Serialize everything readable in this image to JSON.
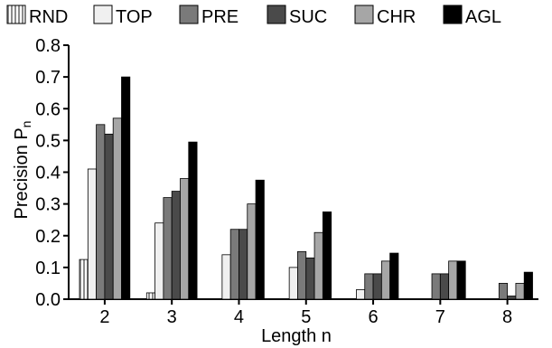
{
  "chart_data": {
    "type": "bar",
    "title": "",
    "xlabel": "Length n",
    "ylabel": "Precision P",
    "ylabel_sub": "n",
    "ylim": [
      0,
      0.8
    ],
    "yticks": [
      "0.0",
      "0.1",
      "0.2",
      "0.3",
      "0.4",
      "0.5",
      "0.6",
      "0.7",
      "0.8"
    ],
    "grid": false,
    "legend_position": "top",
    "categories": [
      "2",
      "3",
      "4",
      "5",
      "6",
      "7",
      "8"
    ],
    "series": [
      {
        "name": "RND",
        "color": "#c8c8c8",
        "pattern": "vertical-stripes",
        "values": [
          0.125,
          0.02,
          0.0,
          0.0,
          0.0,
          0.0,
          0.0
        ]
      },
      {
        "name": "TOP",
        "color": "#f0f0f0",
        "values": [
          0.41,
          0.24,
          0.14,
          0.1,
          0.03,
          0.0,
          0.0
        ]
      },
      {
        "name": "PRE",
        "color": "#7a7a7a",
        "values": [
          0.55,
          0.32,
          0.22,
          0.15,
          0.08,
          0.08,
          0.05
        ]
      },
      {
        "name": "SUC",
        "color": "#4a4a4a",
        "values": [
          0.52,
          0.34,
          0.22,
          0.13,
          0.08,
          0.08,
          0.01
        ]
      },
      {
        "name": "CHR",
        "color": "#a6a6a6",
        "values": [
          0.57,
          0.38,
          0.3,
          0.21,
          0.12,
          0.12,
          0.05
        ]
      },
      {
        "name": "AGL",
        "color": "#000000",
        "values": [
          0.7,
          0.495,
          0.375,
          0.275,
          0.145,
          0.12,
          0.085
        ]
      }
    ]
  }
}
